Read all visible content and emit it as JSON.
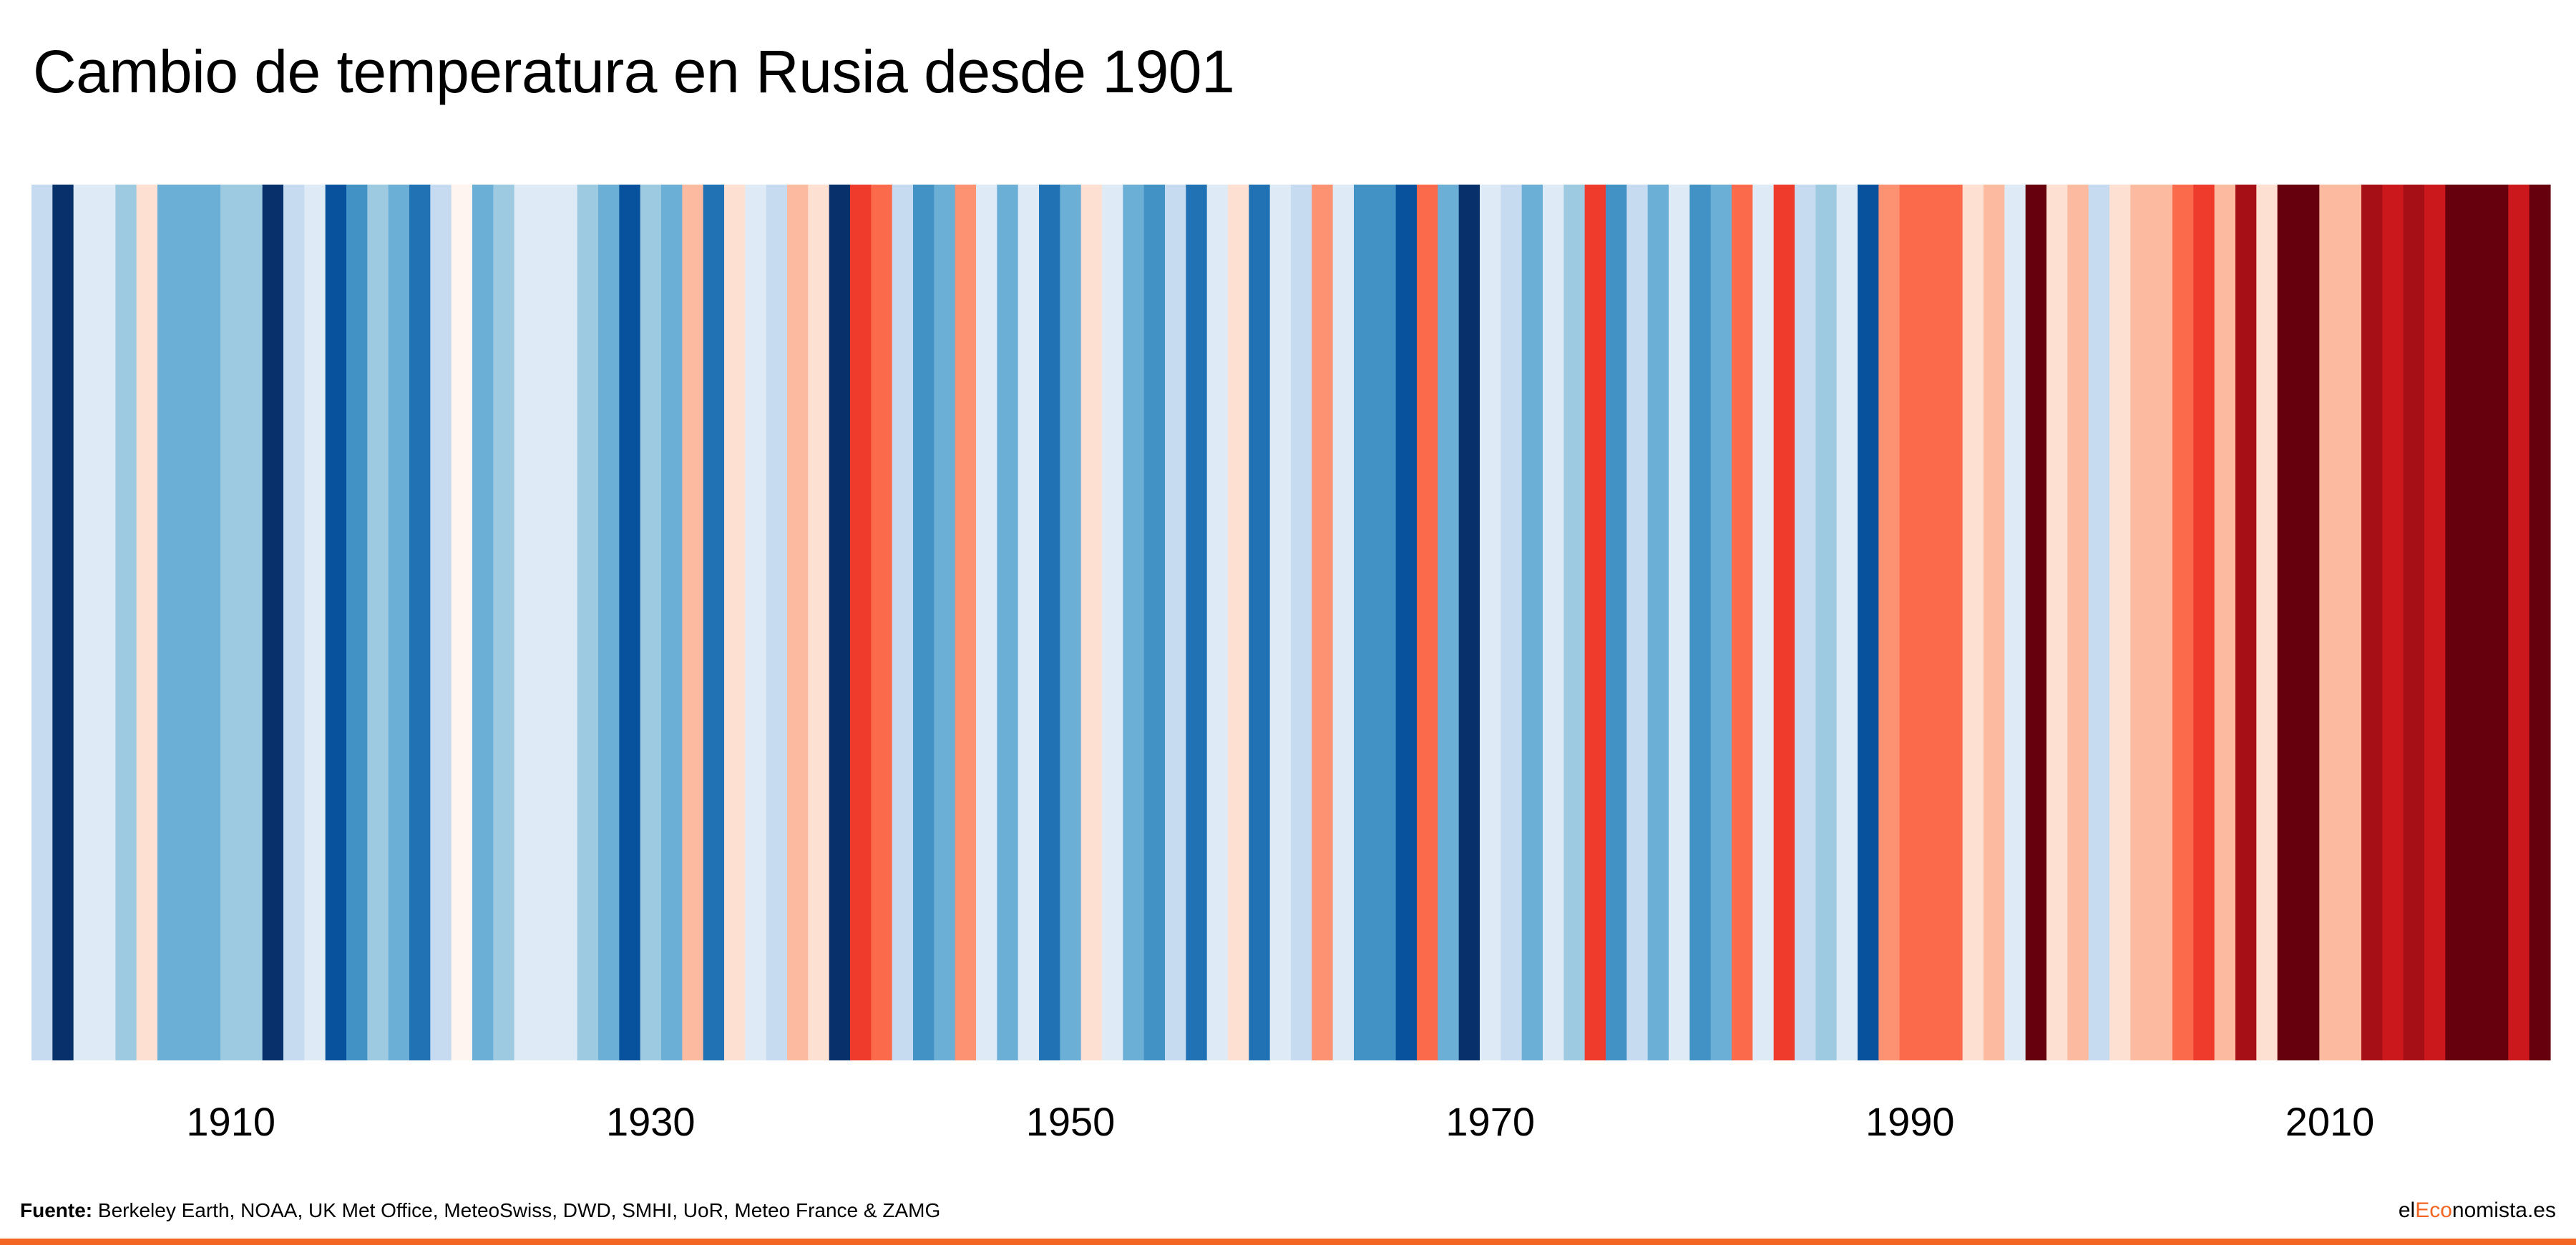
{
  "title": "Cambio de temperatura en Rusia desde 1901",
  "chart_data": {
    "type": "heatmap",
    "subtype": "warming-stripes",
    "title": "Cambio de temperatura en Rusia desde 1901",
    "x_ticks": [
      "1910",
      "1930",
      "1950",
      "1970",
      "1990",
      "2010"
    ],
    "palette_scale": {
      "note": "intensity -4 (coldest) to +4 (warmest)",
      "-4": "#08306b",
      "-3": "#08519c",
      "-2.5": "#2171b5",
      "-2": "#4292c6",
      "-1.5": "#6baed6",
      "-1": "#9ecae1",
      "-0.5": "#c6dbef",
      "0": "#deebf7",
      "0.5": "#fee0d2",
      "1": "#fcbba1",
      "1.5": "#fc9272",
      "2": "#fb6a4a",
      "2.5": "#ef3b2c",
      "3": "#cb181d",
      "3.5": "#a50f15",
      "4": "#67000d"
    },
    "years": [
      1901,
      1902,
      1903,
      1904,
      1905,
      1906,
      1907,
      1908,
      1909,
      1910,
      1911,
      1912,
      1913,
      1914,
      1915,
      1916,
      1917,
      1918,
      1919,
      1920,
      1921,
      1922,
      1923,
      1924,
      1925,
      1926,
      1927,
      1928,
      1929,
      1930,
      1931,
      1932,
      1933,
      1934,
      1935,
      1936,
      1937,
      1938,
      1939,
      1940,
      1941,
      1942,
      1943,
      1944,
      1945,
      1946,
      1947,
      1948,
      1949,
      1950,
      1951,
      1952,
      1953,
      1954,
      1955,
      1956,
      1957,
      1958,
      1959,
      1960,
      1961,
      1962,
      1963,
      1964,
      1965,
      1966,
      1967,
      1968,
      1969,
      1970,
      1971,
      1972,
      1973,
      1974,
      1975,
      1976,
      1977,
      1978,
      1979,
      1980,
      1981,
      1982,
      1983,
      1984,
      1985,
      1986,
      1987,
      1988,
      1989,
      1990,
      1991,
      1992,
      1993,
      1994,
      1995,
      1996,
      1997,
      1998,
      1999,
      2000,
      2001,
      2002,
      2003,
      2004,
      2005,
      2006,
      2007,
      2008,
      2009,
      2010,
      2011,
      2012,
      2013,
      2014,
      2015,
      2016,
      2017,
      2018,
      2019,
      2020
    ],
    "stripe_colors": [
      "#c6dbef",
      "#08306b",
      "#deebf7",
      "#deebf7",
      "#9ecae1",
      "#fee0d2",
      "#6baed6",
      "#6baed6",
      "#6baed6",
      "#9ecae1",
      "#9ecae1",
      "#08306b",
      "#c6dbef",
      "#deebf7",
      "#08519c",
      "#4292c6",
      "#9ecae1",
      "#6baed6",
      "#2171b5",
      "#c6dbef",
      "#fff5f0",
      "#6baed6",
      "#9ecae1",
      "#deebf7",
      "#deebf7",
      "#deebf7",
      "#9ecae1",
      "#6baed6",
      "#08519c",
      "#9ecae1",
      "#6baed6",
      "#fcbba1",
      "#2171b5",
      "#fee0d2",
      "#deebf7",
      "#c6dbef",
      "#fcbba1",
      "#fee0d2",
      "#08306b",
      "#ef3b2c",
      "#fb6a4a",
      "#c6dbef",
      "#4292c6",
      "#6baed6",
      "#fc9272",
      "#deebf7",
      "#6baed6",
      "#deebf7",
      "#2171b5",
      "#6baed6",
      "#fee0d2",
      "#deebf7",
      "#6baed6",
      "#4292c6",
      "#c6dbef",
      "#2171b5",
      "#deebf7",
      "#fee0d2",
      "#2171b5",
      "#deebf7",
      "#c6dbef",
      "#fc9272",
      "#deebf7",
      "#4292c6",
      "#4292c6",
      "#08519c",
      "#fb6a4a",
      "#6baed6",
      "#08306b",
      "#deebf7",
      "#c6dbef",
      "#6baed6",
      "#deebf7",
      "#9ecae1",
      "#ef3b2c",
      "#4292c6",
      "#c6dbef",
      "#6baed6",
      "#deebf7",
      "#4292c6",
      "#6baed6",
      "#fb6a4a",
      "#deebf7",
      "#ef3b2c",
      "#c6dbef",
      "#9ecae1",
      "#deebf7",
      "#08519c",
      "#fc9272",
      "#fb6a4a",
      "#fb6a4a",
      "#fb6a4a",
      "#fee0d2",
      "#fcbba1",
      "#deebf7",
      "#67000d",
      "#fee0d2",
      "#fcbba1",
      "#c6dbef",
      "#fee0d2",
      "#fcbba1",
      "#fcbba1",
      "#fb6a4a",
      "#ef3b2c",
      "#fcbba1",
      "#a50f15",
      "#fee0d2",
      "#67000d",
      "#67000d",
      "#fcbba1",
      "#fcbba1",
      "#a50f15",
      "#cb181d",
      "#a50f15",
      "#cb181d",
      "#67000d",
      "#67000d",
      "#67000d",
      "#cb181d",
      "#67000d"
    ],
    "intensity": [
      -0.5,
      -4,
      0,
      0,
      -1,
      0.5,
      -1.5,
      -1.5,
      -1.5,
      -1,
      -1,
      -4,
      -0.5,
      0,
      -3,
      -2,
      -1,
      -1.5,
      -2.5,
      -0.5,
      0.2,
      -1.5,
      -1,
      0,
      0,
      0,
      -1,
      -1.5,
      -3,
      -1,
      -1.5,
      1,
      -2.5,
      0.5,
      0,
      -0.5,
      1,
      0.5,
      -4,
      2.5,
      2,
      -0.5,
      -2,
      -1.5,
      1.5,
      0,
      -1.5,
      0,
      -2.5,
      -1.5,
      0.5,
      0,
      -1.5,
      -2,
      -0.5,
      -2.5,
      0,
      0.5,
      -2.5,
      0,
      -0.5,
      1.5,
      0,
      -2,
      -2,
      -3,
      2,
      -1.5,
      -4,
      0,
      -0.5,
      -1.5,
      0,
      -1,
      2.5,
      -2,
      -0.5,
      -1.5,
      0,
      -2,
      -1.5,
      2,
      0,
      2.5,
      -0.5,
      -1,
      0,
      -3,
      1.5,
      2,
      2,
      2,
      0.5,
      1,
      0,
      4,
      0.5,
      1,
      -0.5,
      0.5,
      1,
      1,
      2,
      2.5,
      1,
      3.5,
      0.5,
      4,
      4,
      1,
      1,
      3.5,
      3,
      3.5,
      3,
      4,
      4,
      4,
      3,
      4
    ]
  },
  "footer": {
    "source_label": "Fuente:",
    "source_text": " Berkeley Earth, NOAA, UK Met Office, MeteoSwiss, DWD, SMHI, UoR, Meteo France & ZAMG",
    "brand_prefix": "el",
    "brand_accent": "Eco",
    "brand_suffix": "nomista.es"
  },
  "colors": {
    "accent": "#f26522"
  }
}
